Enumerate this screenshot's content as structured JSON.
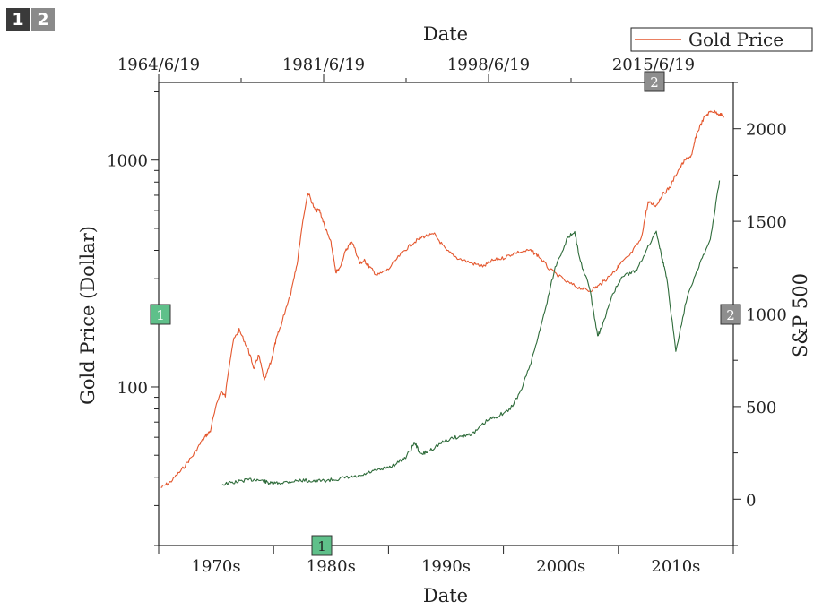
{
  "layer_tabs": [
    "1",
    "2"
  ],
  "colors": {
    "gold": "#e4572e",
    "sp500": "#2e6b3a",
    "axis": "#222222",
    "badge_layer1": "#5fc08a",
    "badge_layer2": "#8e8e8e"
  },
  "chart_data": {
    "type": "line",
    "title": "",
    "x_bottom": {
      "label": "Date",
      "ticks": [
        "1970s",
        "1980s",
        "1990s",
        "2000s",
        "2010s"
      ],
      "range": [
        1965,
        2015
      ]
    },
    "x_top": {
      "label": "Date",
      "ticks": [
        "1964/6/19",
        "1981/6/19",
        "1998/6/19",
        "2015/6/19"
      ]
    },
    "y_left": {
      "label": "Gold Price (Dollar)",
      "scale": "log",
      "ticks": [
        "100",
        "1000"
      ],
      "range": [
        20,
        2200
      ]
    },
    "y_right": {
      "label": "S&P 500",
      "ticks": [
        "0",
        "500",
        "1000",
        "1500",
        "2000"
      ],
      "range": [
        -250,
        2250
      ]
    },
    "legend": {
      "position": "top-right",
      "entries": [
        "Gold Price"
      ]
    },
    "layer_badges": {
      "left_axis": "1",
      "bottom_axis": "1",
      "right_axis": "2",
      "top_axis": "2"
    },
    "grid": false,
    "series": [
      {
        "name": "Gold Price",
        "axis": "left",
        "x": [
          1965.2,
          1966,
          1967,
          1968,
          1969,
          1969.5,
          1970.4,
          1970.8,
          1971.5,
          1972,
          1972.8,
          1973.3,
          1973.7,
          1974.2,
          1974.8,
          1975.2,
          1975.7,
          1976.5,
          1977.1,
          1978,
          1978.6,
          1979,
          1979.5,
          1980,
          1980.4,
          1980.7,
          1981.3,
          1981.8,
          1982.5,
          1982.9,
          1983.3,
          1984,
          1985,
          1986.2,
          1987.1,
          1988,
          1989,
          1990,
          1991,
          1992.3,
          1993.3,
          1994,
          1995,
          1996,
          1997.3,
          1998,
          1999,
          2000.5,
          2001.5,
          2002.5,
          2003.3,
          2004,
          2004.8,
          2005.2,
          2006,
          2007,
          2007.6,
          2008.3,
          2008.8,
          2009.5,
          2010.2,
          2010.8,
          2011.4,
          2011.8,
          2012.5,
          2013.1,
          2013.8,
          2014.2
        ],
        "y": [
          36,
          38,
          43,
          50,
          60,
          64,
          96,
          91,
          160,
          178,
          145,
          120,
          138,
          106,
          130,
          160,
          190,
          260,
          360,
          720,
          600,
          600,
          500,
          430,
          320,
          330,
          400,
          440,
          350,
          360,
          340,
          310,
          330,
          390,
          430,
          460,
          470,
          400,
          370,
          350,
          340,
          360,
          370,
          390,
          400,
          380,
          330,
          290,
          275,
          265,
          280,
          300,
          330,
          350,
          380,
          450,
          650,
          630,
          700,
          760,
          900,
          1000,
          1050,
          1300,
          1550,
          1650,
          1600,
          1550
        ]
      },
      {
        "name": "",
        "axis": "right",
        "x": [
          1970.5,
          1971.5,
          1972.5,
          1973.5,
          1974.2,
          1974.8,
          1975.5,
          1976.5,
          1977.5,
          1978.5,
          1979.5,
          1980.5,
          1981.5,
          1982.5,
          1983.5,
          1984.5,
          1985.5,
          1986.5,
          1987.3,
          1987.8,
          1988.5,
          1989.5,
          1990.5,
          1991.5,
          1992.5,
          1993.5,
          1994.5,
          1995.5,
          1996.5,
          1997.5,
          1998.5,
          1999.5,
          2000.5,
          2001.2,
          2001.6,
          2002.5,
          2003.2,
          2003.7,
          2004.5,
          2005.5,
          2006.5,
          2007.5,
          2008.3,
          2008.8,
          2009.2,
          2010,
          2011,
          2012,
          2013,
          2013.8
        ],
        "y": [
          80,
          90,
          102,
          107,
          96,
          84,
          88,
          96,
          102,
          98,
          100,
          108,
          118,
          122,
          148,
          162,
          185,
          228,
          305,
          240,
          260,
          300,
          330,
          340,
          360,
          420,
          450,
          480,
          580,
          760,
          990,
          1250,
          1400,
          1450,
          1300,
          1140,
          880,
          950,
          1110,
          1210,
          1230,
          1350,
          1450,
          1300,
          1200,
          800,
          1100,
          1260,
          1400,
          1720
        ]
      }
    ]
  }
}
